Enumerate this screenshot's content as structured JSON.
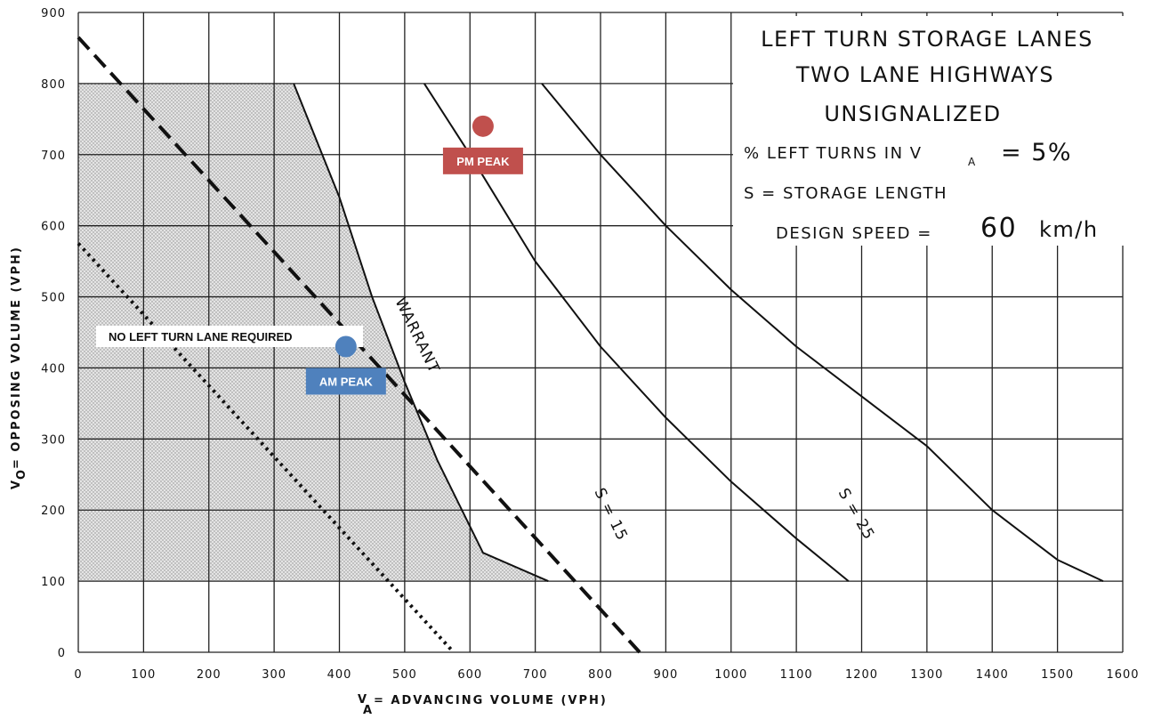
{
  "chart_data": {
    "type": "line",
    "title_lines": [
      "LEFT TURN STORAGE LANES",
      "TWO LANE HIGHWAYS",
      "UNSIGNALIZED"
    ],
    "legend_lines": {
      "left_turns_label": "% LEFT TURNS IN V",
      "left_turns_sub": "A",
      "left_turns_value": "= 5%",
      "storage": "S = STORAGE LENGTH",
      "design_speed_label": "DESIGN SPEED =",
      "design_speed_value": "60",
      "design_speed_unit": "km/h"
    },
    "xlabel": "= ADVANCING VOLUME (VPH)",
    "xlabel_symbol": "V",
    "xlabel_sub": "A",
    "ylabel": "= OPPOSING VOLUME (VPH)",
    "ylabel_symbol": "V",
    "ylabel_sub": "O",
    "xlim": [
      0,
      1600
    ],
    "ylim": [
      0,
      900
    ],
    "xticks": [
      0,
      100,
      200,
      300,
      400,
      500,
      600,
      700,
      800,
      900,
      1000,
      1100,
      1200,
      1300,
      1400,
      1500,
      1600
    ],
    "yticks": [
      0,
      100,
      200,
      300,
      400,
      500,
      600,
      700,
      800,
      900
    ],
    "grid": true,
    "shaded_region": {
      "label": "NO LEFT TURN LANE REQUIRED",
      "points": [
        [
          0,
          800
        ],
        [
          330,
          800
        ],
        [
          400,
          640
        ],
        [
          450,
          500
        ],
        [
          500,
          380
        ],
        [
          550,
          270
        ],
        [
          620,
          140
        ],
        [
          720,
          100
        ],
        [
          0,
          100
        ]
      ]
    },
    "series": [
      {
        "name": "WARRANT",
        "style": "solid",
        "points": [
          [
            330,
            800
          ],
          [
            400,
            640
          ],
          [
            450,
            500
          ],
          [
            500,
            380
          ],
          [
            550,
            270
          ],
          [
            620,
            140
          ],
          [
            720,
            100
          ]
        ]
      },
      {
        "name": "S = 15",
        "style": "solid",
        "points": [
          [
            530,
            800
          ],
          [
            600,
            700
          ],
          [
            700,
            550
          ],
          [
            800,
            430
          ],
          [
            900,
            330
          ],
          [
            1000,
            240
          ],
          [
            1100,
            160
          ],
          [
            1180,
            100
          ]
        ]
      },
      {
        "name": "S = 25",
        "style": "solid",
        "points": [
          [
            710,
            800
          ],
          [
            800,
            700
          ],
          [
            900,
            600
          ],
          [
            1000,
            510
          ],
          [
            1100,
            430
          ],
          [
            1200,
            360
          ],
          [
            1300,
            290
          ],
          [
            1400,
            200
          ],
          [
            1500,
            130
          ],
          [
            1570,
            100
          ]
        ]
      },
      {
        "name": "",
        "style": "dashed",
        "points": [
          [
            0,
            865
          ],
          [
            860,
            0
          ]
        ]
      },
      {
        "name": "",
        "style": "dotted",
        "points": [
          [
            0,
            575
          ],
          [
            575,
            0
          ]
        ]
      }
    ],
    "annotations": [
      {
        "label": "AM PEAK",
        "x": 410,
        "y": 430,
        "color": "#4f81bd"
      },
      {
        "label": "PM PEAK",
        "x": 620,
        "y": 740,
        "color": "#c0504d"
      }
    ]
  }
}
